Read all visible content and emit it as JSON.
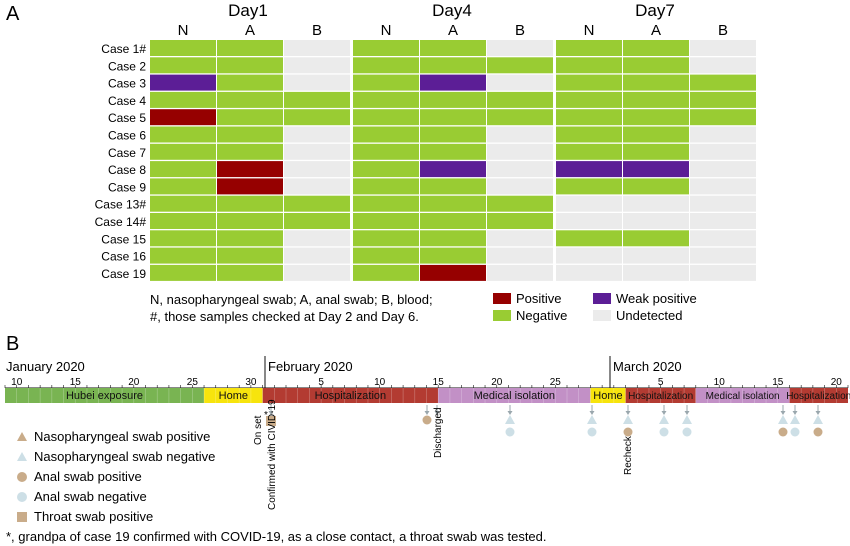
{
  "panel_a": {
    "label": "A",
    "days": [
      "Day1",
      "Day4",
      "Day7"
    ],
    "sample_types": [
      "N",
      "A",
      "B"
    ],
    "cases": [
      "Case 1#",
      "Case 2",
      "Case 3",
      "Case 4",
      "Case 5",
      "Case 6",
      "Case 7",
      "Case 8",
      "Case 9",
      "Case 13#",
      "Case 14#",
      "Case 15",
      "Case 16",
      "Case 19"
    ],
    "status_grid": [
      [
        "G",
        "G",
        "U",
        "G",
        "G",
        "U",
        "G",
        "G",
        "U"
      ],
      [
        "G",
        "G",
        "U",
        "G",
        "G",
        "G",
        "G",
        "G",
        "U"
      ],
      [
        "P",
        "G",
        "U",
        "G",
        "P",
        "U",
        "G",
        "G",
        "G"
      ],
      [
        "G",
        "G",
        "G",
        "G",
        "G",
        "G",
        "G",
        "G",
        "G"
      ],
      [
        "R",
        "G",
        "G",
        "G",
        "G",
        "G",
        "G",
        "G",
        "G"
      ],
      [
        "G",
        "G",
        "U",
        "G",
        "G",
        "U",
        "G",
        "G",
        "U"
      ],
      [
        "G",
        "G",
        "U",
        "G",
        "G",
        "U",
        "G",
        "G",
        "U"
      ],
      [
        "G",
        "R",
        "U",
        "G",
        "P",
        "U",
        "P",
        "P",
        "U"
      ],
      [
        "G",
        "R",
        "U",
        "G",
        "G",
        "U",
        "G",
        "G",
        "U"
      ],
      [
        "G",
        "G",
        "G",
        "G",
        "G",
        "G",
        "U",
        "U",
        "U"
      ],
      [
        "G",
        "G",
        "G",
        "G",
        "G",
        "G",
        "U",
        "U",
        "U"
      ],
      [
        "G",
        "G",
        "U",
        "G",
        "G",
        "U",
        "G",
        "G",
        "U"
      ],
      [
        "G",
        "G",
        "U",
        "G",
        "G",
        "U",
        "U",
        "U",
        "U"
      ],
      [
        "G",
        "G",
        "U",
        "G",
        "R",
        "U",
        "U",
        "U",
        "U"
      ]
    ],
    "legend": [
      {
        "key": "R",
        "label": "Positive",
        "color": "#960000"
      },
      {
        "key": "P",
        "label": "Weak positive",
        "color": "#5c1e96"
      },
      {
        "key": "G",
        "label": "Negative",
        "color": "#99cc33"
      },
      {
        "key": "U",
        "label": "Undetected",
        "color": "#ebebeb"
      }
    ],
    "note_line1": "N, nasopharyngeal swab; A, anal swab; B, blood;",
    "note_line2": "#, those samples checked at Day 2 and Day 6."
  },
  "panel_b": {
    "label": "B",
    "months": [
      "January 2020",
      "February 2020",
      "March 2020"
    ],
    "day_ticks": {
      "jan": [
        "10",
        "15",
        "20",
        "25",
        "30"
      ],
      "feb": [
        "5",
        "10",
        "15",
        "20",
        "25"
      ],
      "mar": [
        "5",
        "10",
        "15",
        "20"
      ]
    },
    "phases": [
      {
        "label": "Hubei exposure",
        "color": "#79b452"
      },
      {
        "label": "Home",
        "color": "#f7e40d"
      },
      {
        "label": "Hospitalization",
        "color": "#b33b32"
      },
      {
        "label": "Medical isolation",
        "color": "#c290c6"
      },
      {
        "label": "Home",
        "color": "#f7e40d"
      },
      {
        "label": "Hospitalization",
        "color": "#b33b32"
      },
      {
        "label": "Medical isolation",
        "color": "#c290c6"
      },
      {
        "label": "Hospitalization",
        "color": "#b33b32"
      }
    ],
    "events": [
      "On set",
      "*",
      "Confirmed with CIVID-19",
      "Discharged",
      "Recheck"
    ],
    "legend": [
      {
        "shape": "triangle",
        "label": "Nasopharyngeal swab positive",
        "color": "#c9ac8a"
      },
      {
        "shape": "triangle",
        "label": "Nasopharyngeal swab negative",
        "color": "#cddfe6"
      },
      {
        "shape": "circle",
        "label": "Anal swab positive",
        "color": "#c9ac8a"
      },
      {
        "shape": "circle",
        "label": "Anal swab negative",
        "color": "#cddfe6"
      },
      {
        "shape": "square",
        "label": "Throat swab positive",
        "color": "#c9ac8a"
      }
    ],
    "footnote": "*, grandpa of case 19 confirmed with COVID-19, as a close contact, a throat swab was tested."
  }
}
